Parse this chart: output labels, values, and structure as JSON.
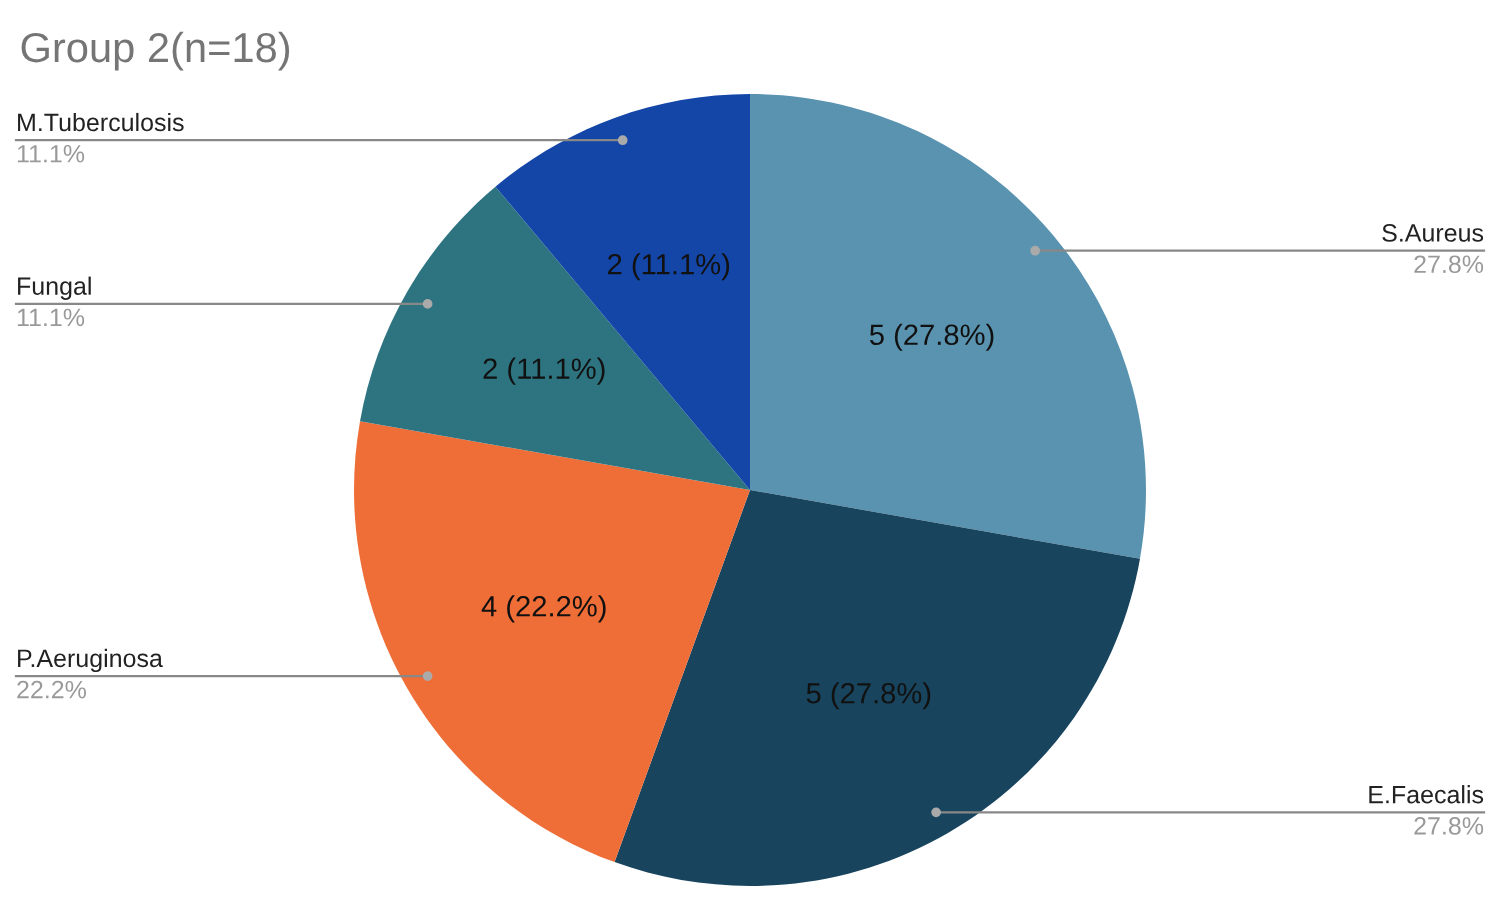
{
  "chart_data": {
    "type": "pie",
    "title": "Group 2(n=18)",
    "categories": [
      "S.Aureus",
      "E.Faecalis",
      "P.Aeruginosa",
      "Fungal",
      "M.Tuberculosis"
    ],
    "values": [
      5,
      5,
      4,
      2,
      2
    ],
    "colors": [
      "#5a93b0",
      "#18445e",
      "#ef6d36",
      "#2d7480",
      "#1446a8"
    ],
    "value_labels": [
      "5 (27.8%)",
      "5 (27.8%)",
      "4 (22.2%)",
      "2 (11.1%)",
      "2 (11.1%)"
    ],
    "annotations": [
      "27.8%",
      "27.8%",
      "22.2%",
      "11.1%",
      "11.1%"
    ],
    "legend": false
  }
}
